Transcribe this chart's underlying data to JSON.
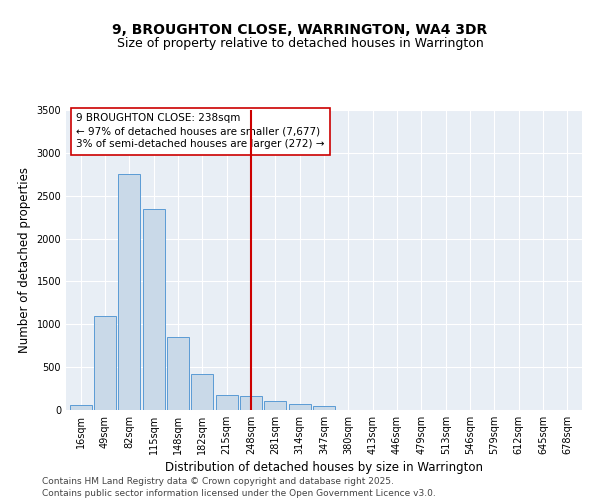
{
  "title": "9, BROUGHTON CLOSE, WARRINGTON, WA4 3DR",
  "subtitle": "Size of property relative to detached houses in Warrington",
  "xlabel": "Distribution of detached houses by size in Warrington",
  "ylabel": "Number of detached properties",
  "categories": [
    "16sqm",
    "49sqm",
    "82sqm",
    "115sqm",
    "148sqm",
    "182sqm",
    "215sqm",
    "248sqm",
    "281sqm",
    "314sqm",
    "347sqm",
    "380sqm",
    "413sqm",
    "446sqm",
    "479sqm",
    "513sqm",
    "546sqm",
    "579sqm",
    "612sqm",
    "645sqm",
    "678sqm"
  ],
  "values": [
    60,
    1100,
    2750,
    2350,
    850,
    420,
    170,
    160,
    100,
    65,
    50,
    0,
    0,
    0,
    0,
    0,
    0,
    0,
    0,
    0,
    0
  ],
  "bar_color": "#c9d9e8",
  "bar_edge_color": "#5b9bd5",
  "vline_index": 7,
  "vline_color": "#cc0000",
  "annotation_line1": "9 BROUGHTON CLOSE: 238sqm",
  "annotation_line2": "← 97% of detached houses are smaller (7,677)",
  "annotation_line3": "3% of semi-detached houses are larger (272) →",
  "ylim": [
    0,
    3500
  ],
  "yticks": [
    0,
    500,
    1000,
    1500,
    2000,
    2500,
    3000,
    3500
  ],
  "bg_color": "#e8eef5",
  "footer_line1": "Contains HM Land Registry data © Crown copyright and database right 2025.",
  "footer_line2": "Contains public sector information licensed under the Open Government Licence v3.0.",
  "title_fontsize": 10,
  "subtitle_fontsize": 9,
  "xlabel_fontsize": 8.5,
  "ylabel_fontsize": 8.5,
  "tick_fontsize": 7,
  "annotation_fontsize": 7.5,
  "footer_fontsize": 6.5
}
